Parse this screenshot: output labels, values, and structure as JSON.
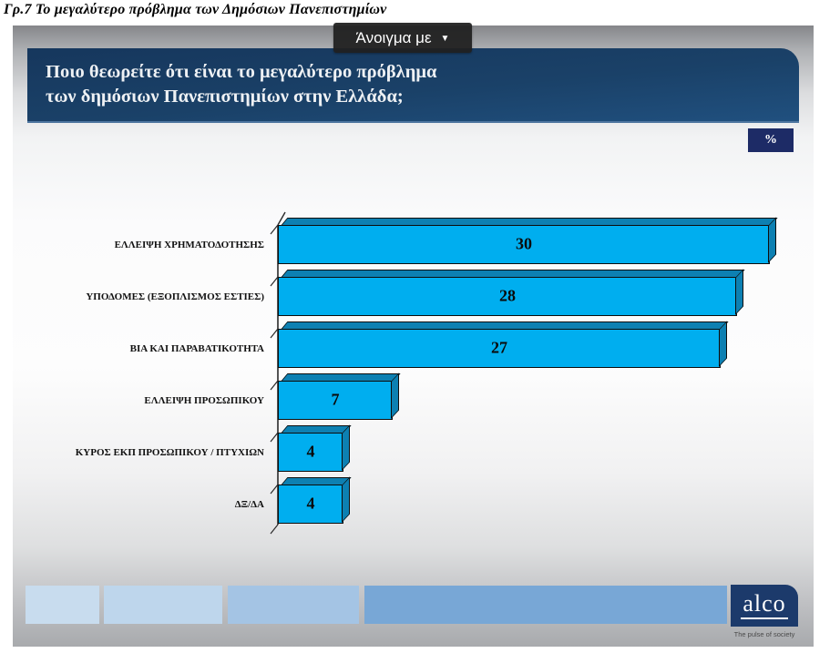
{
  "page": {
    "figure_caption": "Γρ.7 Το μεγαλύτερο πρόβλημα των Δημόσιων Πανεπιστημίων",
    "open_with": {
      "label": "Άνοιγμα με",
      "caret_icon": "▼"
    }
  },
  "slide": {
    "question_line1": "Ποιο θεωρείτε ότι είναι το μεγαλύτερο πρόβλημα",
    "question_line2": "των δημόσιων Πανεπιστημίων στην Ελλάδα;",
    "unit_badge": "%",
    "footer": {
      "logo_text": "alco",
      "logo_tagline": "The pulse of society",
      "strip_colors": [
        "#c8dcee",
        "#bed6ec",
        "#a4c4e4",
        "#78a7d6"
      ]
    }
  },
  "colors": {
    "header_navy_top": "#16375d",
    "header_navy_bottom": "#20507f",
    "badge_navy": "#1d2b66",
    "logo_navy": "#1c3a6b"
  },
  "chart_data": {
    "type": "bar",
    "orientation": "horizontal",
    "title": "Ποιο θεωρείτε ότι είναι το μεγαλύτερο πρόβλημα των δημόσιων Πανεπιστημίων στην Ελλάδα;",
    "unit": "%",
    "categories": [
      "ΕΛΛΕΙΨΗ ΧΡΗΜΑΤΟΔΟΤΗΣΗΣ",
      "ΥΠΟΔΟΜΕΣ (ΕΞΟΠΛΙΣΜΟΣ ΕΣΤΙΕΣ)",
      "ΒΙΑ ΚΑΙ ΠΑΡΑΒΑΤΙΚΟΤΗΤΑ",
      "ΕΛΛΕΙΨΗ ΠΡΟΣΩΠΙΚΟΥ",
      "ΚΥΡΟΣ ΕΚΠ ΠΡΟΣΩΠΙΚΟΥ / ΠΤΥΧΙΩΝ",
      "ΔΞ/ΔΑ"
    ],
    "values": [
      30,
      28,
      27,
      7,
      4,
      4
    ],
    "data_labels": true,
    "xlim": [
      0,
      33
    ],
    "grid": false,
    "legend": false,
    "bar_color": "#00aeef",
    "bar_side_color": "#0d80b2"
  }
}
